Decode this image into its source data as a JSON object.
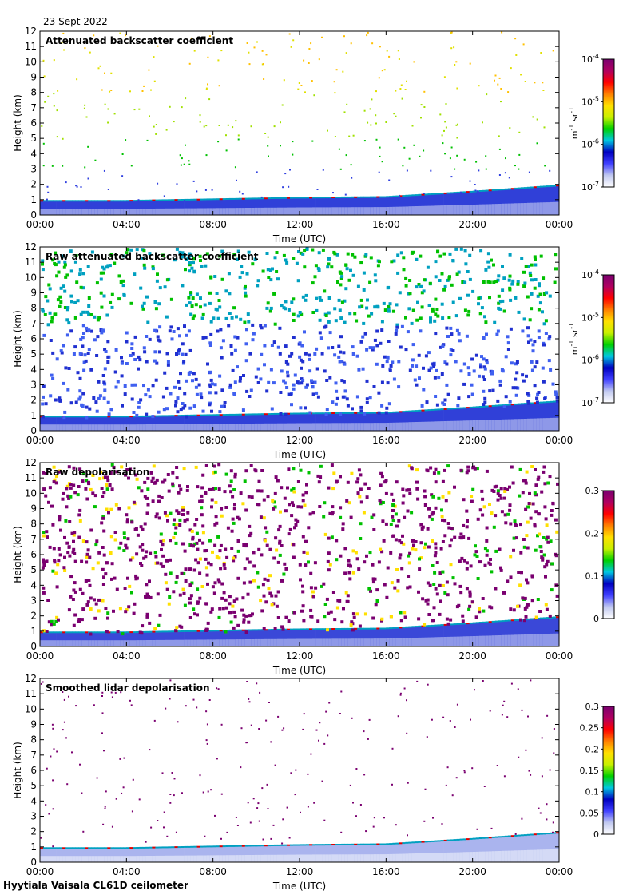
{
  "date": "23 Sept 2022",
  "footer": "Hyytiala Vaisala CL61D ceilometer",
  "colors": {
    "cmap": [
      "#ffffff",
      "#c8d2f0",
      "#4050e0",
      "#0010c0",
      "#00a0c0",
      "#00c000",
      "#a0e000",
      "#e0e000",
      "#ff8000",
      "#e00000",
      "#800000",
      "#7a0070"
    ]
  },
  "chart_data": [
    {
      "type": "heatmap",
      "title": "Attenuated backscatter coefficient",
      "xlabel": "Time (UTC)",
      "ylabel": "Height (km)",
      "x_ticks": [
        "00:00",
        "04:00",
        "08:00",
        "12:00",
        "16:00",
        "20:00",
        "00:00"
      ],
      "y_ticks": [
        "0",
        "1",
        "2",
        "3",
        "4",
        "5",
        "6",
        "7",
        "8",
        "9",
        "10",
        "11",
        "12"
      ],
      "ylim": [
        0,
        12
      ],
      "colorbar": {
        "ticks": [
          {
            "base": "10",
            "exp": "-4"
          },
          {
            "base": "10",
            "exp": "-5"
          },
          {
            "base": "10",
            "exp": "-6"
          },
          {
            "base": "10",
            "exp": "-7"
          }
        ],
        "unit_base1": "m",
        "unit_exp1": "-1",
        "unit_base2": " sr",
        "unit_exp2": "-1",
        "scale": "log"
      },
      "boundary_layer_km": [
        0.9,
        0.9,
        1.0,
        1.1,
        1.15,
        1.5,
        1.9
      ],
      "noise_density": 0.08
    },
    {
      "type": "heatmap",
      "title": "Raw attenuated backscatter coefficient",
      "xlabel": "Time (UTC)",
      "ylabel": "Height (km)",
      "x_ticks": [
        "00:00",
        "04:00",
        "08:00",
        "12:00",
        "16:00",
        "20:00",
        "00:00"
      ],
      "y_ticks": [
        "0",
        "1",
        "2",
        "3",
        "4",
        "5",
        "6",
        "7",
        "8",
        "9",
        "10",
        "11",
        "12"
      ],
      "ylim": [
        0,
        12
      ],
      "colorbar": {
        "ticks": [
          {
            "base": "10",
            "exp": "-4"
          },
          {
            "base": "10",
            "exp": "-5"
          },
          {
            "base": "10",
            "exp": "-6"
          },
          {
            "base": "10",
            "exp": "-7"
          }
        ],
        "unit_base1": "m",
        "unit_exp1": "-1",
        "unit_base2": " sr",
        "unit_exp2": "-1",
        "scale": "log"
      },
      "boundary_layer_km": [
        0.9,
        0.9,
        1.0,
        1.1,
        1.15,
        1.5,
        1.9
      ],
      "noise_density": 0.55
    },
    {
      "type": "heatmap",
      "title": "Raw depolarisation",
      "xlabel": "Time (UTC)",
      "ylabel": "Height (km)",
      "x_ticks": [
        "00:00",
        "04:00",
        "08:00",
        "12:00",
        "16:00",
        "20:00",
        "00:00"
      ],
      "y_ticks": [
        "0",
        "1",
        "2",
        "3",
        "4",
        "5",
        "6",
        "7",
        "8",
        "9",
        "10",
        "11",
        "12"
      ],
      "ylim": [
        0,
        12
      ],
      "colorbar": {
        "ticks": [
          "0.3",
          "0.2",
          "0.1",
          "0"
        ],
        "scale": "linear",
        "range": [
          0,
          0.3
        ]
      },
      "boundary_layer_km": [
        0.9,
        0.9,
        1.0,
        1.1,
        1.15,
        1.5,
        1.9
      ],
      "noise_density": 0.6
    },
    {
      "type": "heatmap",
      "title": "Smoothed lidar depolarisation",
      "xlabel": "Time (UTC)",
      "ylabel": "Height (km)",
      "x_ticks": [
        "00:00",
        "04:00",
        "08:00",
        "12:00",
        "16:00",
        "20:00",
        "00:00"
      ],
      "y_ticks": [
        "0",
        "1",
        "2",
        "3",
        "4",
        "5",
        "6",
        "7",
        "8",
        "9",
        "10",
        "11",
        "12"
      ],
      "ylim": [
        0,
        12
      ],
      "colorbar": {
        "ticks": [
          "0.3",
          "0.25",
          "0.2",
          "0.15",
          "0.1",
          "0.05",
          "0"
        ],
        "scale": "linear",
        "range": [
          0,
          0.3
        ]
      },
      "boundary_layer_km": [
        0.9,
        0.9,
        1.0,
        1.1,
        1.15,
        1.5,
        1.9
      ],
      "noise_density": 0.03
    }
  ]
}
